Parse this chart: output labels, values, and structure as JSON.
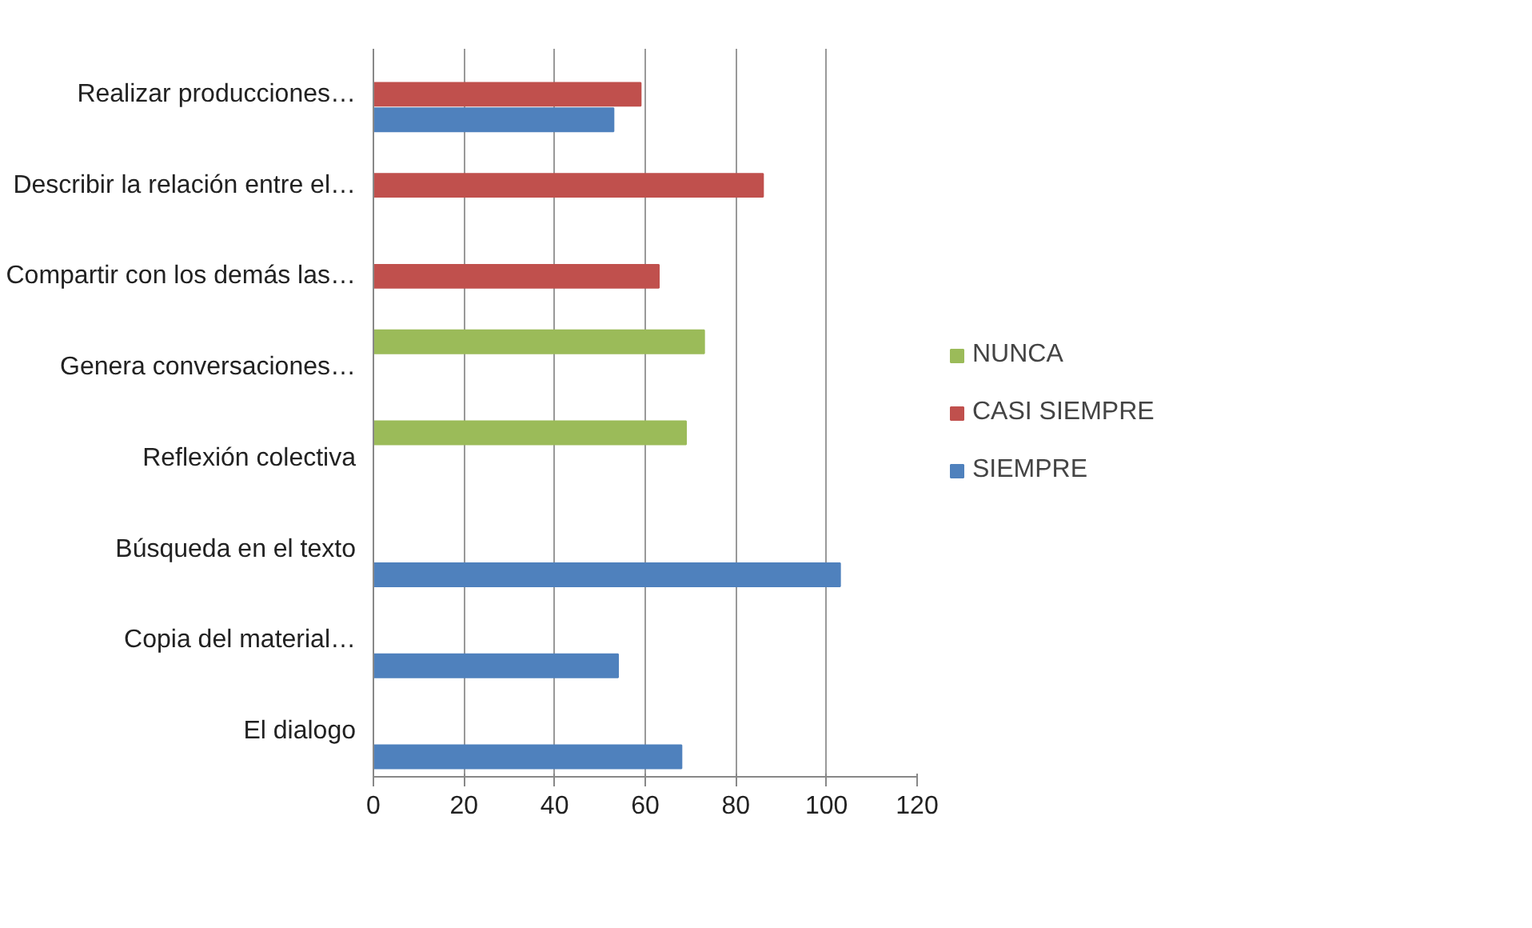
{
  "chart_data": {
    "type": "bar",
    "orientation": "horizontal",
    "categories": [
      "Realizar producciones…",
      "Describir la relación entre el…",
      "Compartir con los demás las…",
      "Genera conversaciones…",
      "Reflexión colectiva",
      "Búsqueda en el texto",
      "Copia del material…",
      "El dialogo"
    ],
    "series": [
      {
        "name": "SIEMPRE",
        "color": "#4f81bd",
        "values": [
          53,
          null,
          null,
          null,
          null,
          103,
          54,
          68
        ]
      },
      {
        "name": "CASI SIEMPRE",
        "color": "#c0504d",
        "values": [
          59,
          86,
          63,
          null,
          null,
          null,
          null,
          null
        ]
      },
      {
        "name": "NUNCA",
        "color": "#9bbb59",
        "values": [
          null,
          null,
          null,
          73,
          69,
          null,
          null,
          null
        ]
      }
    ],
    "xlim": [
      0,
      120
    ],
    "xticks": [
      0,
      20,
      40,
      60,
      80,
      100,
      120
    ],
    "grid": "x",
    "legend": "right"
  }
}
